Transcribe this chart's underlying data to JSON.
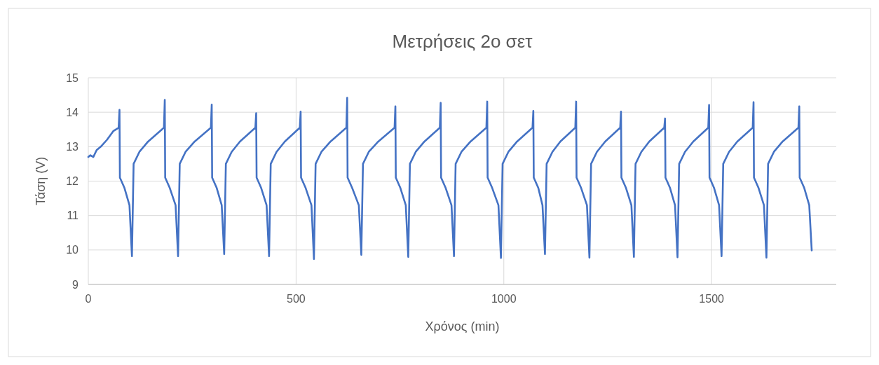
{
  "chart_data": {
    "type": "line",
    "title": "Μετρήσεις 2ο σετ",
    "xlabel": "Χρόνος (min)",
    "ylabel": "Τάση (V)",
    "xlim": [
      0,
      1800
    ],
    "xticks": [
      0,
      500,
      1000,
      1500
    ],
    "ylim": [
      9,
      15
    ],
    "yticks": [
      9,
      10,
      11,
      12,
      13,
      14,
      15
    ],
    "grid": true,
    "line_style": "solid",
    "marker": "none",
    "series": [
      {
        "color": "#4472c4",
        "x": [
          0,
          5,
          12,
          20,
          30,
          45,
          60,
          73,
          75,
          76,
          87,
          99,
          105,
          109,
          123,
          144,
          182,
          184,
          185,
          196,
          210,
          216,
          220,
          234,
          256,
          295,
          297,
          298,
          309,
          321,
          327,
          331,
          345,
          365,
          402,
          404,
          405,
          416,
          429,
          435,
          439,
          453,
          473,
          509,
          511,
          512,
          523,
          537,
          543,
          547,
          561,
          583,
          621,
          623,
          624,
          635,
          651,
          657,
          661,
          675,
          698,
          737,
          739,
          740,
          751,
          764,
          770,
          774,
          788,
          809,
          846,
          848,
          849,
          860,
          874,
          880,
          884,
          898,
          920,
          958,
          960,
          961,
          972,
          987,
          993,
          997,
          1011,
          1032,
          1069,
          1071,
          1072,
          1083,
          1093,
          1099,
          1103,
          1117,
          1136,
          1172,
          1174,
          1175,
          1186,
          1200,
          1206,
          1210,
          1224,
          1244,
          1280,
          1282,
          1283,
          1294,
          1307,
          1313,
          1317,
          1331,
          1350,
          1386,
          1388,
          1389,
          1400,
          1412,
          1418,
          1422,
          1436,
          1456,
          1492,
          1494,
          1495,
          1506,
          1518,
          1524,
          1528,
          1542,
          1562,
          1599,
          1601,
          1602,
          1613,
          1626,
          1632,
          1636,
          1650,
          1671,
          1709,
          1711,
          1712,
          1723,
          1735,
          1741
        ],
        "values": [
          12.7,
          12.75,
          12.7,
          12.9,
          13.0,
          13.2,
          13.45,
          13.55,
          14.07,
          12.1,
          11.8,
          11.3,
          9.82,
          12.5,
          12.85,
          13.15,
          13.55,
          14.36,
          12.1,
          11.8,
          11.3,
          9.82,
          12.5,
          12.85,
          13.15,
          13.55,
          14.22,
          12.1,
          11.8,
          11.3,
          9.88,
          12.5,
          12.85,
          13.15,
          13.55,
          13.97,
          12.1,
          11.8,
          11.3,
          9.82,
          12.5,
          12.85,
          13.15,
          13.55,
          14.02,
          12.1,
          11.8,
          11.3,
          9.74,
          12.5,
          12.85,
          13.15,
          13.55,
          14.42,
          12.1,
          11.8,
          11.3,
          9.86,
          12.5,
          12.85,
          13.15,
          13.55,
          14.17,
          12.1,
          11.8,
          11.3,
          9.8,
          12.5,
          12.85,
          13.15,
          13.55,
          14.27,
          12.1,
          11.8,
          11.3,
          9.82,
          12.5,
          12.85,
          13.15,
          13.55,
          14.31,
          12.1,
          11.8,
          11.3,
          9.77,
          12.5,
          12.85,
          13.15,
          13.55,
          14.04,
          12.1,
          11.8,
          11.3,
          9.88,
          12.5,
          12.85,
          13.15,
          13.55,
          14.31,
          12.1,
          11.8,
          11.3,
          9.78,
          12.5,
          12.85,
          13.15,
          13.55,
          14.02,
          12.1,
          11.8,
          11.3,
          9.8,
          12.5,
          12.85,
          13.15,
          13.55,
          13.82,
          12.1,
          11.8,
          11.3,
          9.79,
          12.5,
          12.85,
          13.15,
          13.55,
          14.21,
          12.1,
          11.8,
          11.3,
          9.82,
          12.5,
          12.85,
          13.15,
          13.55,
          14.29,
          12.1,
          11.8,
          11.3,
          9.78,
          12.5,
          12.85,
          13.15,
          13.55,
          14.17,
          12.1,
          11.8,
          11.3,
          9.99
        ]
      }
    ]
  }
}
